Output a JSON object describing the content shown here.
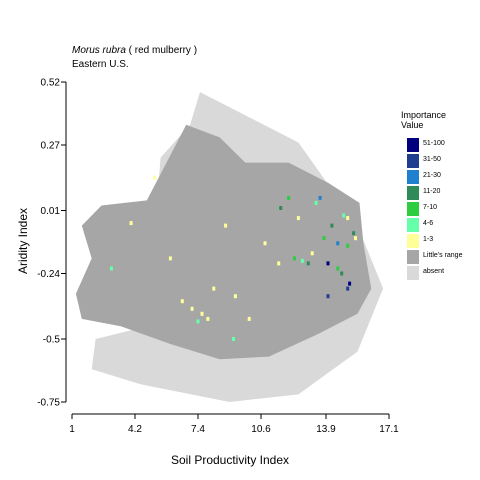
{
  "header": {
    "species_italic": "Morus rubra",
    "species_common": " ( red mulberry )",
    "region": "Eastern U.S."
  },
  "legend": {
    "title_line1": "Importance",
    "title_line2": "Value",
    "items": [
      {
        "label": "51-100",
        "color": "#00007f"
      },
      {
        "label": "31-50",
        "color": "#1e3d8f"
      },
      {
        "label": "21-30",
        "color": "#2080d0"
      },
      {
        "label": "11-20",
        "color": "#2e8b57"
      },
      {
        "label": "7-10",
        "color": "#2ecc40"
      },
      {
        "label": "4-6",
        "color": "#66ffaa"
      },
      {
        "label": "1-3",
        "color": "#ffff99"
      },
      {
        "label": "Little's range",
        "color": "#a6a6a6"
      },
      {
        "label": "absent",
        "color": "#d9d9d9"
      }
    ]
  },
  "chart_data": {
    "type": "heatmap",
    "title": "Morus rubra ( red mulberry )",
    "subtitle": "Eastern U.S.",
    "xlabel": "Soil Productivity Index",
    "ylabel": "Aridity Index",
    "xlim": [
      1,
      17.1
    ],
    "ylim": [
      -0.75,
      0.52
    ],
    "x_ticks": [
      "1",
      "4.2",
      "7.4",
      "10.6",
      "13.9",
      "17.1"
    ],
    "x_tick_values": [
      1,
      4.2,
      7.4,
      10.6,
      13.9,
      17.1
    ],
    "y_ticks": [
      "0.52",
      "0.27",
      "0.01",
      "-0.24",
      "-0.5",
      "-0.75"
    ],
    "y_tick_values": [
      0.52,
      0.27,
      0.01,
      -0.24,
      -0.5,
      -0.75
    ],
    "grid": false,
    "legend_position": "right",
    "regions": {
      "absent": [
        [
          7.5,
          0.48
        ],
        [
          9.5,
          0.4
        ],
        [
          12.5,
          0.28
        ],
        [
          15.5,
          -0.05
        ],
        [
          16.8,
          -0.3
        ],
        [
          15.5,
          -0.55
        ],
        [
          12.5,
          -0.72
        ],
        [
          9.0,
          -0.75
        ],
        [
          4.5,
          -0.68
        ],
        [
          2.0,
          -0.62
        ],
        [
          2.2,
          -0.5
        ],
        [
          4.8,
          -0.45
        ],
        [
          5.5,
          0.22
        ],
        [
          7.0,
          0.35
        ]
      ],
      "littles_range": [
        [
          6.8,
          0.35
        ],
        [
          8.5,
          0.3
        ],
        [
          9.8,
          0.2
        ],
        [
          12.0,
          0.2
        ],
        [
          14.0,
          0.12
        ],
        [
          15.6,
          0.04
        ],
        [
          15.8,
          -0.12
        ],
        [
          16.2,
          -0.3
        ],
        [
          15.5,
          -0.4
        ],
        [
          13.5,
          -0.48
        ],
        [
          11.0,
          -0.57
        ],
        [
          8.5,
          -0.58
        ],
        [
          6.0,
          -0.52
        ],
        [
          3.5,
          -0.45
        ],
        [
          1.5,
          -0.42
        ],
        [
          1.2,
          -0.32
        ],
        [
          2.0,
          -0.18
        ],
        [
          1.5,
          -0.05
        ],
        [
          2.5,
          0.03
        ],
        [
          4.8,
          0.05
        ],
        [
          5.8,
          0.2
        ]
      ]
    },
    "importance_points": [
      {
        "x": 4.0,
        "y": -0.04,
        "class": "1-3"
      },
      {
        "x": 5.2,
        "y": 0.14,
        "class": "1-3"
      },
      {
        "x": 6.0,
        "y": -0.18,
        "class": "1-3"
      },
      {
        "x": 6.6,
        "y": -0.35,
        "class": "1-3"
      },
      {
        "x": 7.1,
        "y": -0.38,
        "class": "1-3"
      },
      {
        "x": 7.6,
        "y": -0.4,
        "class": "1-3"
      },
      {
        "x": 7.9,
        "y": -0.42,
        "class": "1-3"
      },
      {
        "x": 8.2,
        "y": -0.3,
        "class": "1-3"
      },
      {
        "x": 8.8,
        "y": -0.05,
        "class": "1-3"
      },
      {
        "x": 9.3,
        "y": -0.33,
        "class": "1-3"
      },
      {
        "x": 10.0,
        "y": -0.42,
        "class": "1-3"
      },
      {
        "x": 10.8,
        "y": -0.12,
        "class": "1-3"
      },
      {
        "x": 11.5,
        "y": -0.2,
        "class": "1-3"
      },
      {
        "x": 12.5,
        "y": -0.02,
        "class": "1-3"
      },
      {
        "x": 13.2,
        "y": -0.16,
        "class": "1-3"
      },
      {
        "x": 15.0,
        "y": -0.02,
        "class": "1-3"
      },
      {
        "x": 15.4,
        "y": -0.1,
        "class": "1-3"
      },
      {
        "x": 3.0,
        "y": -0.22,
        "class": "4-6"
      },
      {
        "x": 7.4,
        "y": -0.43,
        "class": "4-6"
      },
      {
        "x": 12.7,
        "y": -0.19,
        "class": "4-6"
      },
      {
        "x": 13.4,
        "y": 0.04,
        "class": "4-6"
      },
      {
        "x": 14.8,
        "y": -0.01,
        "class": "4-6"
      },
      {
        "x": 9.2,
        "y": -0.5,
        "class": "4-6"
      },
      {
        "x": 12.3,
        "y": -0.18,
        "class": "7-10"
      },
      {
        "x": 13.8,
        "y": -0.1,
        "class": "7-10"
      },
      {
        "x": 14.5,
        "y": -0.22,
        "class": "7-10"
      },
      {
        "x": 15.0,
        "y": -0.13,
        "class": "7-10"
      },
      {
        "x": 12.0,
        "y": 0.06,
        "class": "7-10"
      },
      {
        "x": 13.0,
        "y": -0.2,
        "class": "11-20"
      },
      {
        "x": 14.2,
        "y": -0.05,
        "class": "11-20"
      },
      {
        "x": 14.7,
        "y": -0.24,
        "class": "11-20"
      },
      {
        "x": 15.3,
        "y": -0.08,
        "class": "11-20"
      },
      {
        "x": 11.6,
        "y": 0.02,
        "class": "11-20"
      },
      {
        "x": 14.5,
        "y": -0.12,
        "class": "21-30"
      },
      {
        "x": 13.6,
        "y": 0.06,
        "class": "21-30"
      },
      {
        "x": 14.0,
        "y": -0.33,
        "class": "31-50"
      },
      {
        "x": 15.0,
        "y": -0.3,
        "class": "31-50"
      },
      {
        "x": 14.0,
        "y": -0.2,
        "class": "51-100"
      },
      {
        "x": 15.1,
        "y": -0.28,
        "class": "51-100"
      }
    ]
  }
}
